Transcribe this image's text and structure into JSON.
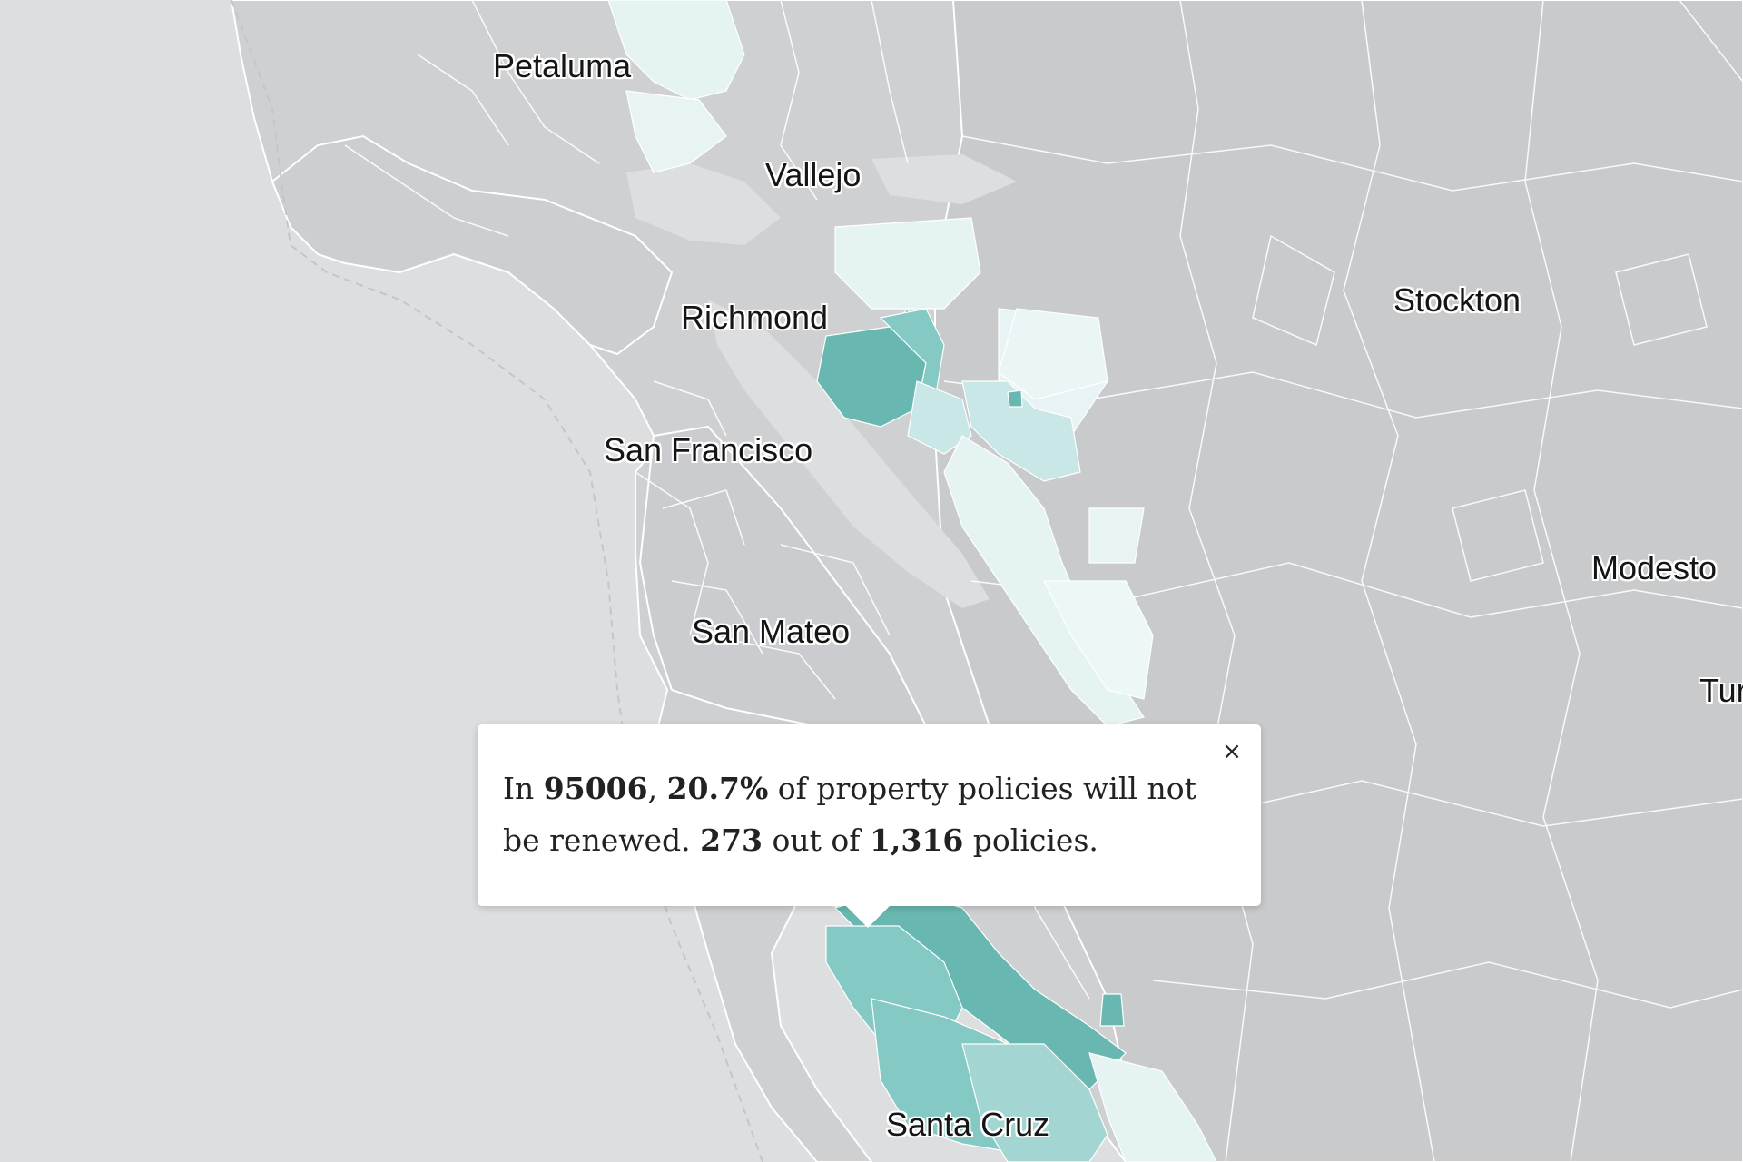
{
  "map": {
    "colors": {
      "water": "#dcdee0",
      "land": "#cfd0d2",
      "land_dark": "#c8c9cb",
      "border": "#ffffff",
      "shade_1": "#e5f3f3",
      "shade_2": "#c8e7e6",
      "shade_3": "#a3d6d3",
      "shade_4": "#85c9c4",
      "shade_5": "#68b8b1"
    },
    "cities": [
      {
        "key": "petaluma",
        "name": "Petaluma"
      },
      {
        "key": "vallejo",
        "name": "Vallejo"
      },
      {
        "key": "richmond",
        "name": "Richmond"
      },
      {
        "key": "stockton",
        "name": "Stockton"
      },
      {
        "key": "san-francisco",
        "name": "San Francisco"
      },
      {
        "key": "modesto",
        "name": "Modesto"
      },
      {
        "key": "san-mateo",
        "name": "San Mateo"
      },
      {
        "key": "turlock-partial",
        "name": "Tur"
      },
      {
        "key": "santa-cruz",
        "name": "Santa Cruz"
      }
    ]
  },
  "popup": {
    "prefix": "In ",
    "zip": "95006",
    "sep1": ", ",
    "percent": "20.7%",
    "mid": " of property policies will not be renewed. ",
    "non_renewed": "273",
    "out_of": " out of ",
    "total": "1,316",
    "suffix": " policies.",
    "close_glyph": "×"
  }
}
